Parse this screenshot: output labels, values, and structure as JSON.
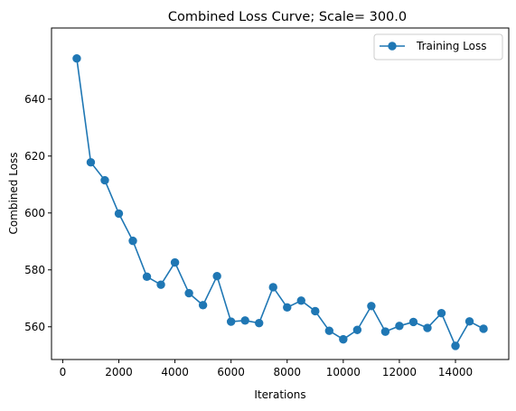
{
  "chart_data": {
    "type": "line",
    "title": "Combined Loss Curve; Scale= 300.0",
    "xlabel": "Iterations",
    "ylabel": "Combined Loss",
    "xlim": [
      -400,
      15900
    ],
    "ylim": [
      548.5,
      665.0
    ],
    "xticks": [
      0,
      2000,
      4000,
      6000,
      8000,
      10000,
      12000,
      14000
    ],
    "xtick_labels": [
      "0",
      "2000",
      "4000",
      "6000",
      "8000",
      "10000",
      "12000",
      "14000"
    ],
    "yticks": [
      560,
      580,
      600,
      620,
      640
    ],
    "ytick_labels": [
      "560",
      "580",
      "600",
      "620",
      "640"
    ],
    "grid": false,
    "legend_position": "top-right",
    "series": [
      {
        "name": "Training Loss",
        "color": "#1f77b4",
        "marker": "circle",
        "x": [
          500,
          1000,
          1500,
          2000,
          2500,
          3000,
          3500,
          4000,
          4500,
          5000,
          5500,
          6000,
          6500,
          7000,
          7500,
          8000,
          8500,
          9000,
          9500,
          10000,
          10500,
          11000,
          11500,
          12000,
          12500,
          13000,
          13500,
          14000,
          14500,
          15000
        ],
        "y": [
          654.3,
          617.8,
          611.5,
          599.8,
          590.2,
          577.6,
          574.8,
          582.6,
          571.8,
          567.6,
          577.8,
          561.8,
          562.2,
          561.3,
          573.9,
          566.8,
          569.2,
          565.5,
          558.6,
          555.6,
          558.9,
          567.3,
          558.3,
          560.3,
          561.7,
          559.6,
          564.8,
          553.3,
          561.9,
          559.3
        ]
      }
    ]
  }
}
